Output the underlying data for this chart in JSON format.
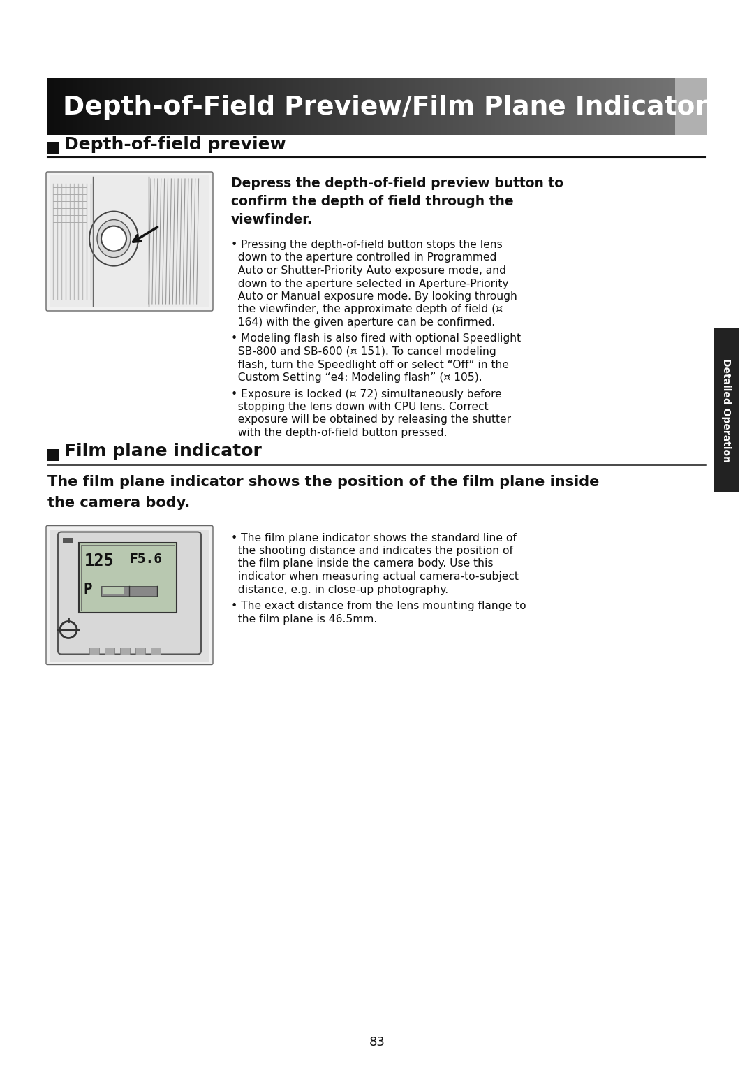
{
  "page_bg": "#ffffff",
  "header_text": "Depth-of-Field Preview/Film Plane Indicator",
  "header_text_color": "#ffffff",
  "section1_title": "Depth-of-field preview",
  "section2_title": "Film plane indicator",
  "section2_bold_line1": "The film plane indicator shows the position of the film plane inside",
  "section2_bold_line2": "the camera body.",
  "sidebar_text": "Detailed Operation",
  "sidebar_bg": "#222222",
  "sidebar_text_color": "#ffffff",
  "page_number": "83",
  "section_square_color": "#111111",
  "divider_color": "#111111",
  "bold_lead_lines": [
    "Depress the depth-of-field preview button to",
    "confirm the depth of field through the",
    "viewfinder."
  ],
  "bullet1_lines": [
    "• Pressing the depth-of-field button stops the lens",
    "  down to the aperture controlled in Programmed",
    "  Auto or Shutter-Priority Auto exposure mode, and",
    "  down to the aperture selected in Aperture-Priority",
    "  Auto or Manual exposure mode. By looking through",
    "  the viewfinder, the approximate depth of field (¤",
    "  164) with the given aperture can be confirmed."
  ],
  "bullet2_lines": [
    "• Modeling flash is also fired with optional Speedlight",
    "  SB-800 and SB-600 (¤ 151). To cancel modeling",
    "  flash, turn the Speedlight off or select “Off” in the",
    "  Custom Setting “e4: Modeling flash” (¤ 105)."
  ],
  "bullet3_lines": [
    "• Exposure is locked (¤ 72) simultaneously before",
    "  stopping the lens down with CPU lens. Correct",
    "  exposure will be obtained by releasing the shutter",
    "  with the depth-of-field button pressed."
  ],
  "bullet4_lines": [
    "• The film plane indicator shows the standard line of",
    "  the shooting distance and indicates the position of",
    "  the film plane inside the camera body. Use this",
    "  indicator when measuring actual camera-to-subject",
    "  distance, e.g. in close-up photography."
  ],
  "bullet5_lines": [
    "• The exact distance from the lens mounting flange to",
    "  the film plane is 46.5mm."
  ]
}
